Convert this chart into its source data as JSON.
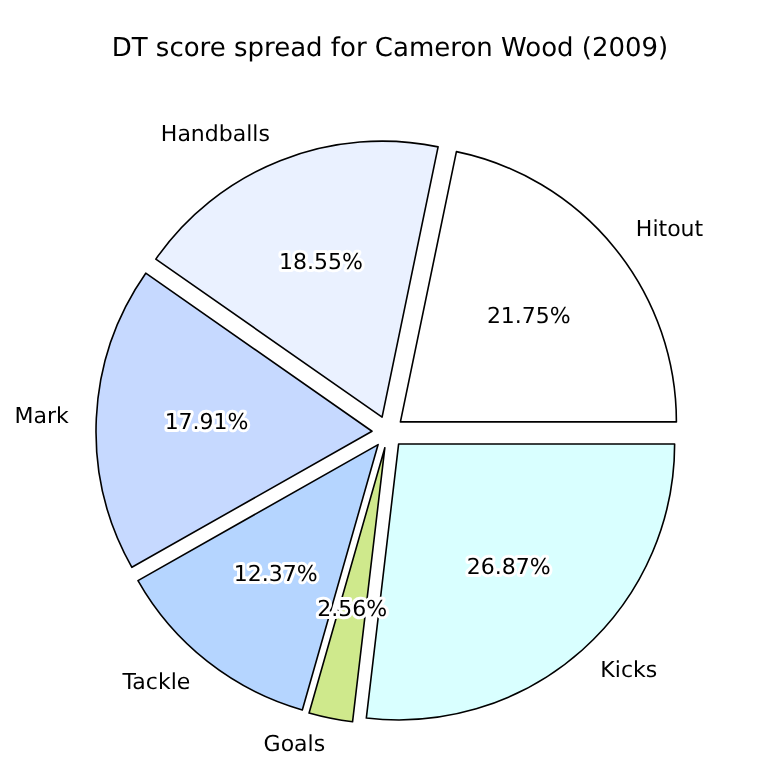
{
  "chart_data": {
    "type": "pie",
    "title": "DT score spread for Cameron Wood (2009)",
    "categories": [
      "Hitout",
      "Handballs",
      "Mark",
      "Tackle",
      "Goals",
      "Kicks"
    ],
    "values": [
      21.75,
      18.55,
      17.91,
      12.37,
      2.56,
      26.87
    ],
    "value_labels": [
      "21.75%",
      "18.55%",
      "17.91%",
      "12.37%",
      "2.56%",
      "26.87%"
    ],
    "colors": [
      "#ffffff",
      "#eaf1ff",
      "#c6d9ff",
      "#b5d5ff",
      "#cfe98c",
      "#d9ffff"
    ]
  }
}
